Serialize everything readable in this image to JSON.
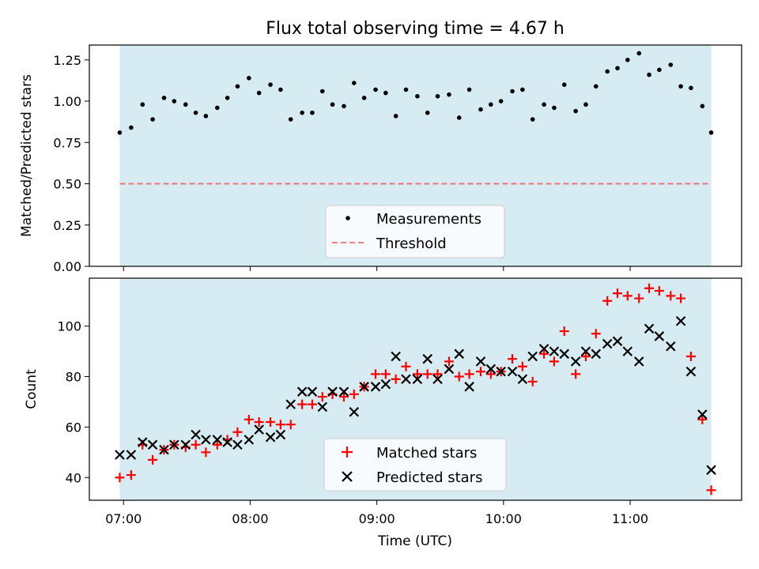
{
  "title": "Flux total observing time = 4.67 h",
  "colors": {
    "shade": "#add8e6",
    "threshold": "#ff0000",
    "matched": "#ff0000",
    "predicted": "#000000",
    "measure": "#000000"
  },
  "chart_data": [
    {
      "type": "scatter",
      "name": "ratio-panel",
      "ylabel": "Matched/Predicted stars",
      "xlabel": "",
      "ylim": [
        0,
        1.34
      ],
      "xlim": [
        6.73,
        11.88
      ],
      "yticks": [
        0.0,
        0.25,
        0.5,
        0.75,
        1.0,
        1.25
      ],
      "ytick_labels": [
        "0.00",
        "0.25",
        "0.50",
        "0.75",
        "1.00",
        "1.25"
      ],
      "shaded_span": [
        6.97,
        11.64
      ],
      "threshold": 0.5,
      "legend": {
        "location": "lower-center",
        "labels": [
          "Measurements",
          "Threshold"
        ]
      },
      "series": [
        {
          "name": "Measurements",
          "x": [
            6.97,
            7.06,
            7.15,
            7.23,
            7.32,
            7.4,
            7.49,
            7.57,
            7.65,
            7.74,
            7.82,
            7.9,
            7.99,
            8.07,
            8.16,
            8.24,
            8.32,
            8.41,
            8.49,
            8.57,
            8.65,
            8.74,
            8.82,
            8.9,
            8.99,
            9.07,
            9.15,
            9.23,
            9.32,
            9.4,
            9.48,
            9.57,
            9.65,
            9.73,
            9.82,
            9.9,
            9.98,
            10.07,
            10.15,
            10.23,
            10.32,
            10.4,
            10.48,
            10.57,
            10.65,
            10.73,
            10.82,
            10.9,
            10.98,
            11.07,
            11.15,
            11.23,
            11.32,
            11.4,
            11.48,
            11.57,
            11.64
          ],
          "y": [
            0.81,
            0.84,
            0.98,
            0.89,
            1.02,
            1.0,
            0.98,
            0.93,
            0.91,
            0.96,
            1.02,
            1.09,
            1.14,
            1.05,
            1.1,
            1.07,
            0.89,
            0.93,
            0.93,
            1.06,
            0.98,
            0.97,
            1.11,
            1.02,
            1.07,
            1.05,
            0.91,
            1.07,
            1.03,
            0.93,
            1.03,
            1.04,
            0.9,
            1.07,
            0.95,
            0.98,
            1.0,
            1.06,
            1.07,
            0.89,
            0.98,
            0.96,
            1.1,
            0.94,
            0.98,
            1.09,
            1.18,
            1.2,
            1.25,
            1.29,
            1.16,
            1.19,
            1.22,
            1.09,
            1.08,
            0.97,
            0.81
          ]
        }
      ]
    },
    {
      "type": "scatter",
      "name": "count-panel",
      "ylabel": "Count",
      "xlabel": "Time (UTC)",
      "ylim": [
        31,
        119
      ],
      "xlim": [
        6.73,
        11.88
      ],
      "yticks": [
        40,
        60,
        80,
        100
      ],
      "ytick_labels": [
        "40",
        "60",
        "80",
        "100"
      ],
      "xticks": [
        7,
        8,
        9,
        10,
        11
      ],
      "xtick_labels": [
        "07:00",
        "08:00",
        "09:00",
        "10:00",
        "11:00"
      ],
      "shaded_span": [
        6.97,
        11.64
      ],
      "legend": {
        "location": "lower-center",
        "labels": [
          "Matched stars",
          "Predicted stars"
        ]
      },
      "series": [
        {
          "name": "Matched stars",
          "x": [
            6.97,
            7.06,
            7.15,
            7.23,
            7.32,
            7.4,
            7.49,
            7.57,
            7.65,
            7.74,
            7.82,
            7.9,
            7.99,
            8.07,
            8.16,
            8.24,
            8.32,
            8.41,
            8.49,
            8.57,
            8.65,
            8.74,
            8.82,
            8.9,
            8.99,
            9.07,
            9.15,
            9.23,
            9.32,
            9.4,
            9.48,
            9.57,
            9.65,
            9.73,
            9.82,
            9.9,
            9.98,
            10.07,
            10.15,
            10.23,
            10.32,
            10.4,
            10.48,
            10.57,
            10.65,
            10.73,
            10.82,
            10.9,
            10.98,
            11.07,
            11.15,
            11.23,
            11.32,
            11.4,
            11.48,
            11.57,
            11.64
          ],
          "y": [
            40,
            41,
            53,
            47,
            51,
            53,
            52,
            53,
            50,
            53,
            55,
            58,
            63,
            62,
            62,
            61,
            61,
            69,
            69,
            72,
            73,
            72,
            73,
            76,
            81,
            81,
            79,
            84,
            81,
            81,
            81,
            86,
            80,
            81,
            82,
            81,
            82,
            87,
            84,
            78,
            89,
            86,
            98,
            81,
            88,
            97,
            110,
            113,
            112,
            111,
            115,
            114,
            112,
            111,
            88,
            63,
            35
          ]
        },
        {
          "name": "Predicted stars",
          "x": [
            6.97,
            7.06,
            7.15,
            7.23,
            7.32,
            7.4,
            7.49,
            7.57,
            7.65,
            7.74,
            7.82,
            7.9,
            7.99,
            8.07,
            8.16,
            8.24,
            8.32,
            8.41,
            8.49,
            8.57,
            8.65,
            8.74,
            8.82,
            8.9,
            8.99,
            9.07,
            9.15,
            9.23,
            9.32,
            9.4,
            9.48,
            9.57,
            9.65,
            9.73,
            9.82,
            9.9,
            9.98,
            10.07,
            10.15,
            10.23,
            10.32,
            10.4,
            10.48,
            10.57,
            10.65,
            10.73,
            10.82,
            10.9,
            10.98,
            11.07,
            11.15,
            11.23,
            11.32,
            11.4,
            11.48,
            11.57,
            11.64
          ],
          "y": [
            49,
            49,
            54,
            53,
            51,
            53,
            53,
            57,
            55,
            55,
            54,
            53,
            55,
            59,
            56,
            57,
            69,
            74,
            74,
            68,
            74,
            74,
            66,
            76,
            76,
            77,
            88,
            79,
            79,
            87,
            79,
            83,
            89,
            76,
            86,
            83,
            82,
            82,
            79,
            88,
            91,
            90,
            89,
            86,
            90,
            89,
            93,
            94,
            90,
            86,
            99,
            96,
            92,
            102,
            82,
            65,
            43
          ]
        }
      ]
    }
  ]
}
